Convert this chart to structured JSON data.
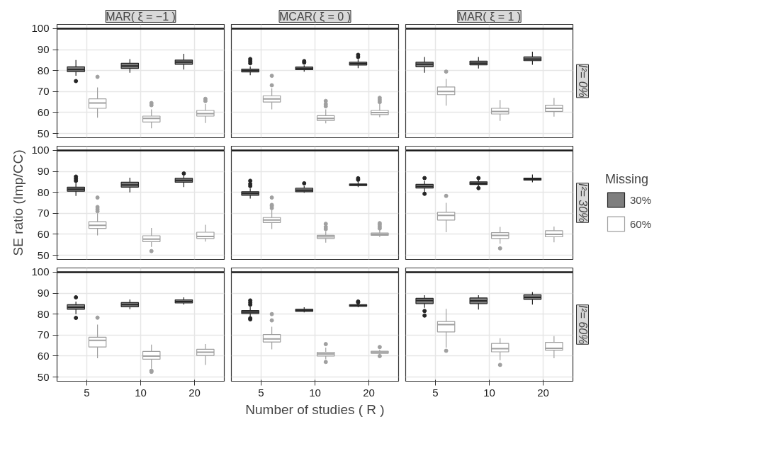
{
  "chart_data": [
    {
      "type": "box",
      "title": "MAR( ξ = −1 )",
      "categories": [
        "5",
        "10",
        "20"
      ],
      "ylim": [
        48,
        102
      ],
      "yticks": [
        50,
        60,
        70,
        80,
        90,
        100
      ],
      "grid": true,
      "tick_labels": "y",
      "ref_lines": [
        {
          "axis": "y",
          "value": 100,
          "color": "#1a1a1a"
        }
      ],
      "series": [
        {
          "color": "#7f7f7f",
          "boxes": [
            {
              "low": 77.5,
              "q1": 79.5,
              "median": 80.5,
              "q3": 81.8,
              "high": 85,
              "outliers": [
                75
              ]
            },
            {
              "low": 79,
              "q1": 81,
              "median": 82.2,
              "q3": 83.5,
              "high": 85.5
            },
            {
              "low": 80.5,
              "q1": 83,
              "median": 84,
              "q3": 85,
              "high": 88
            }
          ]
        },
        {
          "color": "#ffffff",
          "boxes": [
            {
              "low": 57.5,
              "q1": 62,
              "median": 64.5,
              "q3": 66.5,
              "high": 72,
              "outliers": [
                77
              ]
            },
            {
              "low": 52.5,
              "q1": 55.5,
              "median": 57.2,
              "q3": 58.3,
              "high": 61.5,
              "outliers": [
                63.5,
                64.5
              ]
            },
            {
              "low": 55,
              "q1": 58.3,
              "median": 59.5,
              "q3": 61,
              "high": 64,
              "outliers": [
                65.5,
                66.5
              ]
            }
          ]
        }
      ]
    },
    {
      "type": "box",
      "title": "MCAR( ξ = 0 )",
      "categories": [
        "5",
        "10",
        "20"
      ],
      "ylim": [
        48,
        102
      ],
      "yticks": [
        50,
        60,
        70,
        80,
        90,
        100
      ],
      "grid": true,
      "tick_labels": false,
      "ref_lines": [
        {
          "axis": "y",
          "value": 100,
          "color": "#1a1a1a"
        }
      ],
      "series": [
        {
          "color": "#7f7f7f",
          "boxes": [
            {
              "low": 77.8,
              "q1": 79.3,
              "median": 80,
              "q3": 80.7,
              "high": 82,
              "outliers": [
                83.5,
                84.5,
                85.5
              ]
            },
            {
              "low": 79.5,
              "q1": 80.4,
              "median": 81,
              "q3": 81.7,
              "high": 82.5,
              "outliers": [
                83.8,
                84.5
              ]
            },
            {
              "low": 81.2,
              "q1": 82.6,
              "median": 83.3,
              "q3": 84,
              "high": 85.5,
              "outliers": [
                86.5,
                87.5
              ]
            }
          ]
        },
        {
          "color": "#ffffff",
          "boxes": [
            {
              "low": 61.5,
              "q1": 65,
              "median": 66.5,
              "q3": 68,
              "high": 71.5,
              "outliers": [
                73,
                77.5
              ]
            },
            {
              "low": 54.8,
              "q1": 56.2,
              "median": 57.2,
              "q3": 58.5,
              "high": 61.5,
              "outliers": [
                63,
                64,
                65.5
              ]
            },
            {
              "low": 57.8,
              "q1": 59,
              "median": 60,
              "q3": 61,
              "high": 64,
              "outliers": [
                65,
                66,
                67
              ]
            }
          ]
        }
      ]
    },
    {
      "type": "box",
      "title": "MAR( ξ = 1 )",
      "y2label": "I²= 0%",
      "categories": [
        "5",
        "10",
        "20"
      ],
      "ylim": [
        48,
        102
      ],
      "yticks": [
        50,
        60,
        70,
        80,
        90,
        100
      ],
      "grid": true,
      "tick_labels": false,
      "ref_lines": [
        {
          "axis": "y",
          "value": 100,
          "color": "#1a1a1a"
        }
      ],
      "series": [
        {
          "color": "#7f7f7f",
          "boxes": [
            {
              "low": 79,
              "q1": 81.8,
              "median": 83,
              "q3": 84,
              "high": 86.5
            },
            {
              "low": 81,
              "q1": 82.7,
              "median": 83.5,
              "q3": 84.5,
              "high": 86.5
            },
            {
              "low": 82.8,
              "q1": 84.7,
              "median": 85.5,
              "q3": 86.5,
              "high": 89
            }
          ]
        },
        {
          "color": "#ffffff",
          "boxes": [
            {
              "low": 63.3,
              "q1": 68.5,
              "median": 70,
              "q3": 72.2,
              "high": 76,
              "outliers": [
                79.5
              ]
            },
            {
              "low": 56,
              "q1": 59.3,
              "median": 60.5,
              "q3": 62,
              "high": 66
            },
            {
              "low": 58,
              "q1": 60.5,
              "median": 62,
              "q3": 63.5,
              "high": 67
            }
          ]
        }
      ]
    },
    {
      "type": "box",
      "ylabel": "SE ratio (Imp/CC)",
      "categories": [
        "5",
        "10",
        "20"
      ],
      "ylim": [
        48,
        102
      ],
      "yticks": [
        50,
        60,
        70,
        80,
        90,
        100
      ],
      "grid": true,
      "tick_labels": "y",
      "ref_lines": [
        {
          "axis": "y",
          "value": 100,
          "color": "#1a1a1a"
        }
      ],
      "series": [
        {
          "color": "#7f7f7f",
          "boxes": [
            {
              "low": 78.3,
              "q1": 80.5,
              "median": 81.5,
              "q3": 82.5,
              "high": 84.5,
              "outliers": [
                85.5,
                86.5,
                87.5
              ]
            },
            {
              "low": 80,
              "q1": 82.5,
              "median": 83.5,
              "q3": 84.8,
              "high": 87
            },
            {
              "low": 82.5,
              "q1": 84.8,
              "median": 85.7,
              "q3": 86.7,
              "high": 88,
              "outliers": [
                89
              ]
            }
          ]
        },
        {
          "color": "#ffffff",
          "boxes": [
            {
              "low": 59.5,
              "q1": 62.8,
              "median": 64.3,
              "q3": 66,
              "high": 70,
              "outliers": [
                71,
                72,
                73,
                77.5
              ]
            },
            {
              "low": 54,
              "q1": 56.5,
              "median": 57.7,
              "q3": 59.3,
              "high": 63,
              "outliers": [
                52
              ]
            },
            {
              "low": 56.5,
              "q1": 58,
              "median": 59,
              "q3": 61,
              "high": 64.5
            }
          ]
        }
      ]
    },
    {
      "type": "box",
      "categories": [
        "5",
        "10",
        "20"
      ],
      "ylim": [
        48,
        102
      ],
      "yticks": [
        50,
        60,
        70,
        80,
        90,
        100
      ],
      "grid": true,
      "tick_labels": false,
      "ref_lines": [
        {
          "axis": "y",
          "value": 100,
          "color": "#1a1a1a"
        }
      ],
      "series": [
        {
          "color": "#7f7f7f",
          "boxes": [
            {
              "low": 77,
              "q1": 78.6,
              "median": 79.5,
              "q3": 80.3,
              "high": 81.8,
              "outliers": [
                83,
                84,
                85.5
              ]
            },
            {
              "low": 79.8,
              "q1": 80.3,
              "median": 81,
              "q3": 82,
              "high": 83,
              "outliers": [
                84.3
              ]
            },
            {
              "low": 82.5,
              "q1": 83.2,
              "median": 83.6,
              "q3": 84,
              "high": 85,
              "outliers": [
                86,
                86.7
              ]
            }
          ]
        },
        {
          "color": "#ffffff",
          "boxes": [
            {
              "low": 62.5,
              "q1": 65.6,
              "median": 66.8,
              "q3": 68,
              "high": 71.5,
              "outliers": [
                72.5,
                73.5,
                74,
                77.5
              ]
            },
            {
              "low": 56,
              "q1": 58,
              "median": 58.8,
              "q3": 59.5,
              "high": 61.5,
              "outliers": [
                62.5,
                63.5,
                65
              ]
            },
            {
              "low": 58.7,
              "q1": 59.5,
              "median": 60,
              "q3": 60.6,
              "high": 62,
              "outliers": [
                62.8,
                63.6,
                64.5,
                65.3
              ]
            }
          ]
        }
      ]
    },
    {
      "type": "box",
      "y2label": "I²= 30%",
      "legend": "right",
      "legend_title": "Missing",
      "categories": [
        "5",
        "10",
        "20"
      ],
      "ylim": [
        48,
        102
      ],
      "yticks": [
        50,
        60,
        70,
        80,
        90,
        100
      ],
      "grid": true,
      "tick_labels": false,
      "ref_lines": [
        {
          "axis": "y",
          "value": 100,
          "color": "#1a1a1a"
        }
      ],
      "series": [
        {
          "name": "30%",
          "color": "#7f7f7f",
          "boxes": [
            {
              "low": 80,
              "q1": 82,
              "median": 82.8,
              "q3": 83.8,
              "high": 85.5,
              "outliers": [
                79.3,
                86.8
              ]
            },
            {
              "low": 82.8,
              "q1": 83.7,
              "median": 84.3,
              "q3": 85,
              "high": 86,
              "outliers": [
                82,
                86.8
              ]
            },
            {
              "low": 84.8,
              "q1": 85.8,
              "median": 86.3,
              "q3": 86.8,
              "high": 88.5
            }
          ]
        },
        {
          "name": "60%",
          "color": "#ffffff",
          "boxes": [
            {
              "low": 61,
              "q1": 66.8,
              "median": 69,
              "q3": 70.5,
              "high": 75,
              "outliers": [
                78.3
              ]
            },
            {
              "low": 55.5,
              "q1": 58,
              "median": 59.5,
              "q3": 60.8,
              "high": 63.5,
              "outliers": [
                53.3
              ]
            },
            {
              "low": 56.2,
              "q1": 58.8,
              "median": 60,
              "q3": 61.7,
              "high": 63.7
            }
          ]
        }
      ]
    },
    {
      "type": "box",
      "categories": [
        "5",
        "10",
        "20"
      ],
      "ylim": [
        48,
        102
      ],
      "yticks": [
        50,
        60,
        70,
        80,
        90,
        100
      ],
      "grid": true,
      "ref_lines": [
        {
          "axis": "y",
          "value": 100,
          "color": "#1a1a1a"
        }
      ],
      "series": [
        {
          "color": "#7f7f7f",
          "boxes": [
            {
              "low": 80,
              "q1": 82.3,
              "median": 83.3,
              "q3": 84.5,
              "high": 86,
              "outliers": [
                78.2,
                88
              ]
            },
            {
              "low": 82.3,
              "q1": 83.5,
              "median": 84.5,
              "q3": 85.5,
              "high": 87
            },
            {
              "low": 84.5,
              "q1": 85.3,
              "median": 86,
              "q3": 86.8,
              "high": 88
            }
          ]
        },
        {
          "color": "#ffffff",
          "boxes": [
            {
              "low": 59,
              "q1": 64.3,
              "median": 67.5,
              "q3": 69,
              "high": 75,
              "outliers": [
                78.3
              ]
            },
            {
              "low": 54,
              "q1": 58.5,
              "median": 60,
              "q3": 62.2,
              "high": 65.5,
              "outliers": [
                52.5,
                53
              ]
            },
            {
              "low": 55.8,
              "q1": 60.3,
              "median": 61.8,
              "q3": 63.2,
              "high": 65.7
            }
          ]
        }
      ]
    },
    {
      "type": "box",
      "xlabel": "Number of studies ( R )",
      "categories": [
        "5",
        "10",
        "20"
      ],
      "ylim": [
        48,
        102
      ],
      "yticks": [
        50,
        60,
        70,
        80,
        90,
        100
      ],
      "grid": true,
      "tick_labels": "x",
      "ref_lines": [
        {
          "axis": "y",
          "value": 100,
          "color": "#1a1a1a"
        }
      ],
      "series": [
        {
          "color": "#7f7f7f",
          "boxes": [
            {
              "low": 78.5,
              "q1": 80.3,
              "median": 81,
              "q3": 81.7,
              "high": 83.5,
              "outliers": [
                77.5,
                78,
                84.5,
                85.5,
                86.5
              ]
            },
            {
              "low": 80.8,
              "q1": 81.3,
              "median": 81.8,
              "q3": 82.3,
              "high": 83.3
            },
            {
              "low": 83.3,
              "q1": 83.7,
              "median": 84.1,
              "q3": 84.5,
              "high": 85,
              "outliers": [
                85.6,
                86
              ]
            }
          ]
        },
        {
          "color": "#ffffff",
          "boxes": [
            {
              "low": 63.2,
              "q1": 66.7,
              "median": 68.2,
              "q3": 70.2,
              "high": 74,
              "outliers": [
                77,
                80
              ]
            },
            {
              "low": 58.5,
              "q1": 60,
              "median": 61,
              "q3": 61.8,
              "high": 64,
              "outliers": [
                57.2,
                65.7
              ]
            },
            {
              "low": 60.8,
              "q1": 61.3,
              "median": 61.8,
              "q3": 62.3,
              "high": 63,
              "outliers": [
                60,
                64.3
              ]
            }
          ]
        }
      ]
    },
    {
      "type": "box",
      "y2label": "I²= 60%",
      "categories": [
        "5",
        "10",
        "20"
      ],
      "ylim": [
        48,
        102
      ],
      "yticks": [
        50,
        60,
        70,
        80,
        90,
        100
      ],
      "grid": true,
      "tick_labels": "x",
      "ref_lines": [
        {
          "axis": "y",
          "value": 100,
          "color": "#1a1a1a"
        }
      ],
      "series": [
        {
          "color": "#7f7f7f",
          "boxes": [
            {
              "low": 83,
              "q1": 85,
              "median": 86.5,
              "q3": 87.5,
              "high": 89,
              "outliers": [
                79.3,
                81.5
              ]
            },
            {
              "low": 82.2,
              "q1": 85,
              "median": 86.3,
              "q3": 87.7,
              "high": 89
            },
            {
              "low": 84.5,
              "q1": 87,
              "median": 88,
              "q3": 89.2,
              "high": 90.5
            }
          ]
        },
        {
          "color": "#ffffff",
          "boxes": [
            {
              "low": 64,
              "q1": 71.5,
              "median": 75,
              "q3": 76.5,
              "high": 82.5,
              "outliers": [
                62.5
              ]
            },
            {
              "low": 58,
              "q1": 62,
              "median": 63.5,
              "q3": 66,
              "high": 68.5,
              "outliers": [
                55.8
              ]
            },
            {
              "low": 59,
              "q1": 62.8,
              "median": 63.7,
              "q3": 66.5,
              "high": 69.5
            }
          ]
        }
      ]
    }
  ]
}
